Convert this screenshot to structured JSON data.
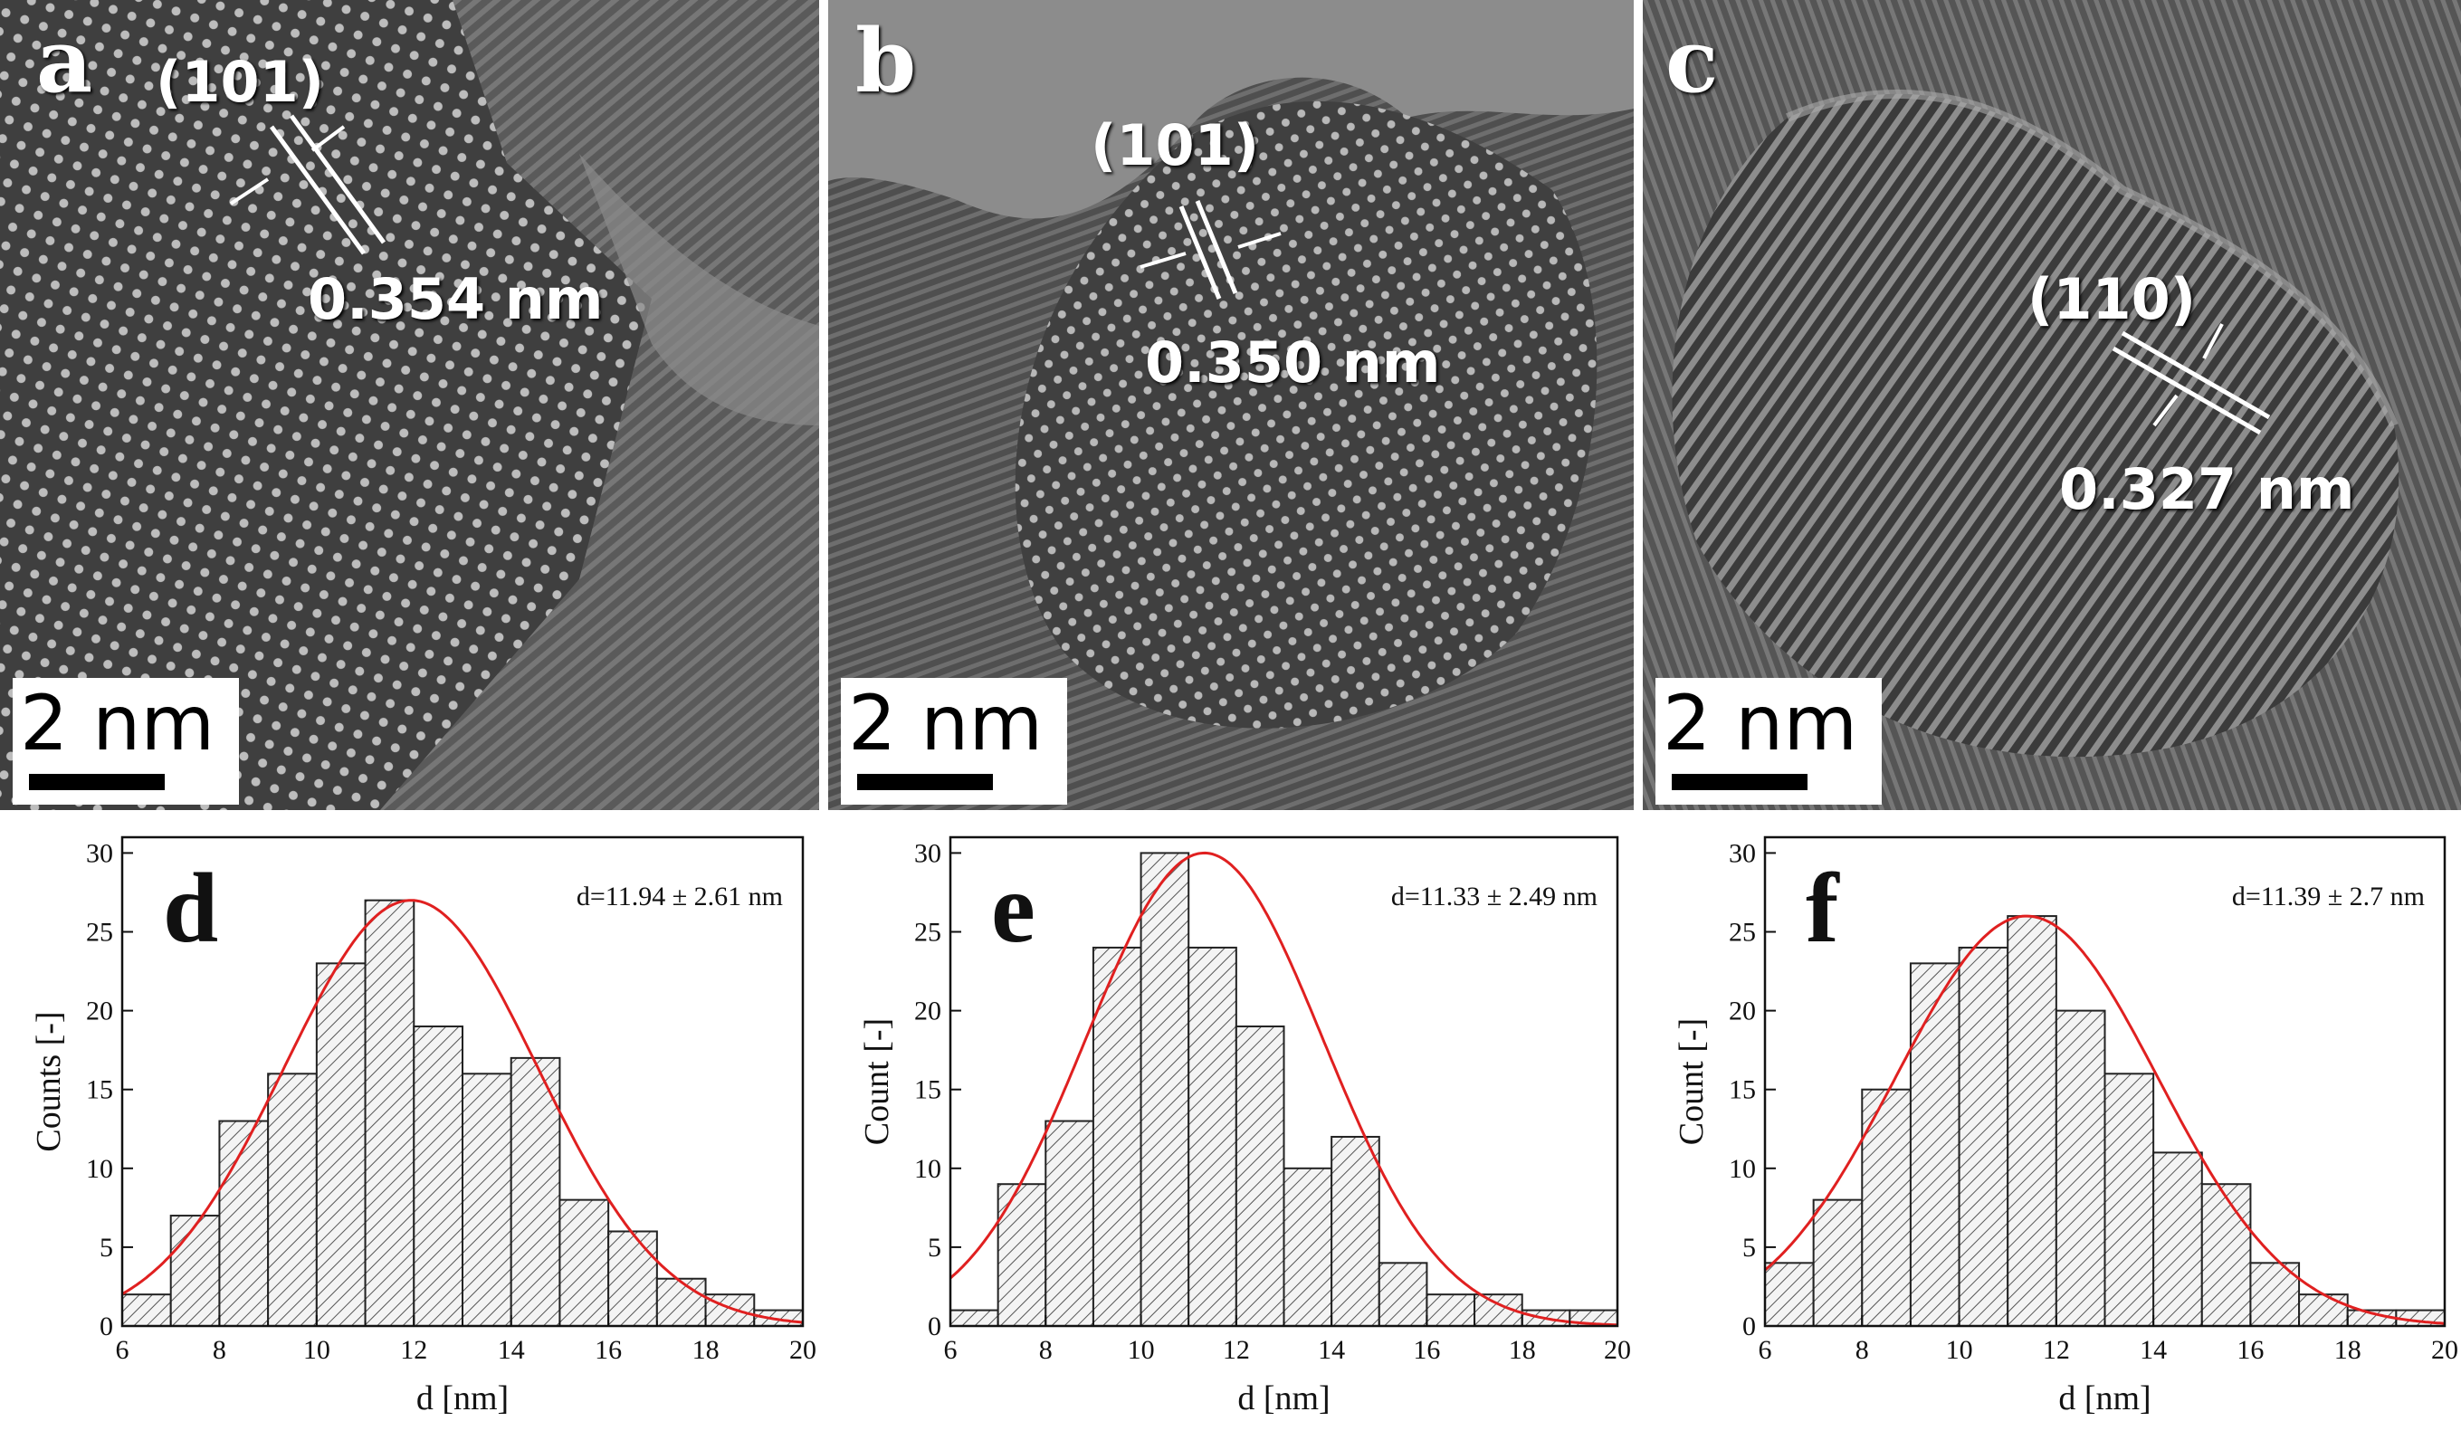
{
  "tem_panels": [
    {
      "letter": "a",
      "plane": "(101)",
      "spacing": "0.354 nm",
      "scale": "2 nm"
    },
    {
      "letter": "b",
      "plane": "(101)",
      "spacing": "0.350 nm",
      "scale": "2 nm"
    },
    {
      "letter": "c",
      "plane": "(110)",
      "spacing": "0.327 nm",
      "scale": "2 nm"
    }
  ],
  "chart_data": [
    {
      "type": "bar",
      "panel_letter": "d",
      "annotation": "d=11.94 ± 2.61 nm",
      "xlabel": "d [nm]",
      "ylabel": "Counts [-]",
      "xlim": [
        6,
        20
      ],
      "ylim": [
        0,
        31
      ],
      "xticks": [
        6,
        8,
        10,
        12,
        14,
        16,
        18,
        20
      ],
      "yticks": [
        0,
        5,
        10,
        15,
        20,
        25,
        30
      ],
      "bin_edges": [
        6,
        7,
        8,
        9,
        10,
        11,
        12,
        13,
        14,
        15,
        16,
        17,
        18,
        19,
        20
      ],
      "values": [
        2,
        7,
        13,
        16,
        23,
        27,
        19,
        16,
        17,
        8,
        6,
        3,
        2,
        1
      ],
      "fit": {
        "type": "gaussian",
        "mean": 11.94,
        "sd": 2.61,
        "peak": 27,
        "color": "#e02020"
      }
    },
    {
      "type": "bar",
      "panel_letter": "e",
      "annotation": "d=11.33 ± 2.49 nm",
      "xlabel": "d [nm]",
      "ylabel": "Count [-]",
      "xlim": [
        6,
        20
      ],
      "ylim": [
        0,
        31
      ],
      "xticks": [
        6,
        8,
        10,
        12,
        14,
        16,
        18,
        20
      ],
      "yticks": [
        0,
        5,
        10,
        15,
        20,
        25,
        30
      ],
      "bin_edges": [
        6,
        7,
        8,
        9,
        10,
        11,
        12,
        13,
        14,
        15,
        16,
        17,
        18,
        19,
        20
      ],
      "values": [
        1,
        9,
        13,
        24,
        30,
        24,
        19,
        10,
        12,
        4,
        2,
        2,
        1,
        1
      ],
      "fit": {
        "type": "gaussian",
        "mean": 11.33,
        "sd": 2.49,
        "peak": 30,
        "color": "#e02020"
      }
    },
    {
      "type": "bar",
      "panel_letter": "f",
      "annotation": "d=11.39 ± 2.7 nm",
      "xlabel": "d [nm]",
      "ylabel": "Count [-]",
      "xlim": [
        6,
        20
      ],
      "ylim": [
        0,
        31
      ],
      "xticks": [
        6,
        8,
        10,
        12,
        14,
        16,
        18,
        20
      ],
      "yticks": [
        0,
        5,
        10,
        15,
        20,
        25,
        30
      ],
      "bin_edges": [
        6,
        7,
        8,
        9,
        10,
        11,
        12,
        13,
        14,
        15,
        16,
        17,
        18,
        19,
        20
      ],
      "values": [
        4,
        8,
        15,
        23,
        24,
        26,
        20,
        16,
        11,
        9,
        4,
        2,
        1,
        1
      ],
      "fit": {
        "type": "gaussian",
        "mean": 11.39,
        "sd": 2.7,
        "peak": 26,
        "color": "#e02020"
      }
    }
  ]
}
